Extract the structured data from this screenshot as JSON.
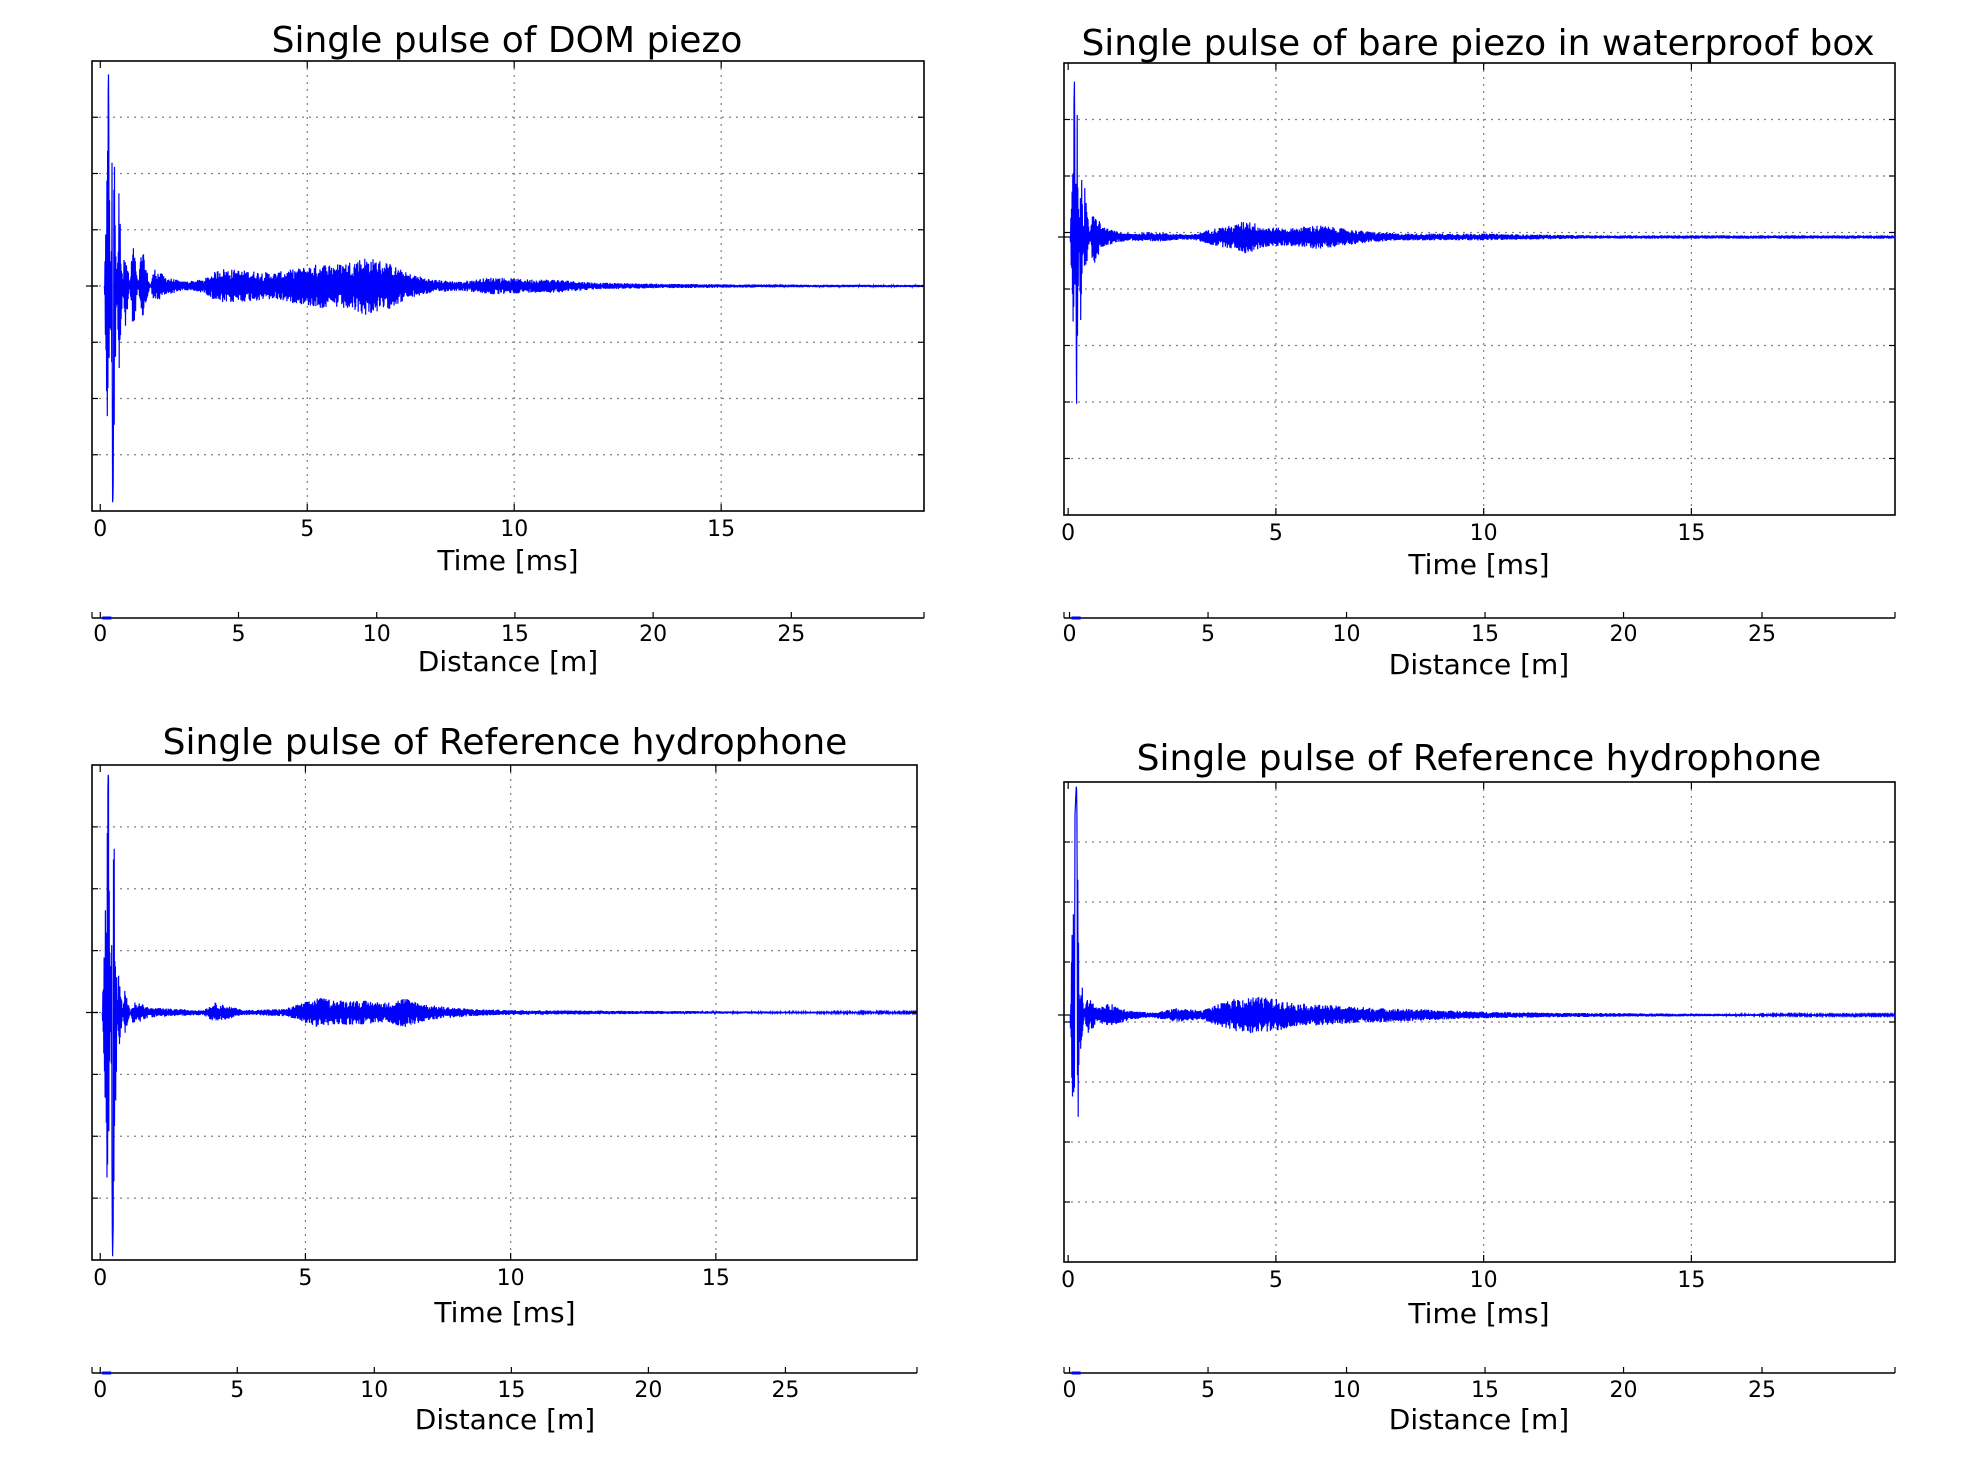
{
  "colors": {
    "signal": "#0000ff",
    "axes": "#000000",
    "grid": "#808080",
    "background": "#ffffff"
  },
  "chart_data": [
    {
      "type": "line",
      "title": "Single pulse of DOM piezo",
      "xlabel": "Time [ms]",
      "secondary_xlabel": "Distance [m]",
      "xlim": [
        -0.2,
        19.9
      ],
      "xticks": [
        "0",
        "5",
        "10",
        "15"
      ],
      "secondary_xlim": [
        -0.3,
        29.8
      ],
      "secondary_xticks": [
        "0",
        "5",
        "10",
        "15",
        "20",
        "25"
      ],
      "grid": true,
      "series": [
        {
          "x": [
            0.1,
            0.2,
            0.3,
            0.45,
            0.6,
            0.8,
            1.0,
            1.3,
            1.6,
            2.0,
            2.5,
            2.9,
            3.5,
            4.2,
            4.8,
            5.3,
            5.8,
            6.4,
            6.9,
            7.4,
            8.0,
            8.7,
            9.5,
            10.3,
            11.0,
            12.0,
            13.5,
            15.0,
            17.0,
            19.9
          ],
          "amplitude": [
            0.0,
            0.95,
            -1.0,
            0.45,
            -0.25,
            0.22,
            -0.18,
            0.08,
            0.04,
            0.02,
            0.03,
            0.08,
            0.07,
            0.06,
            0.08,
            0.1,
            0.1,
            0.13,
            0.11,
            0.06,
            0.03,
            0.02,
            0.04,
            0.03,
            0.03,
            0.015,
            0.01,
            0.008,
            0.006,
            0.005
          ]
        }
      ]
    },
    {
      "type": "line",
      "title": "Single pulse of bare piezo in waterproof box",
      "xlabel": "Time [ms]",
      "secondary_xlabel": "Distance [m]",
      "xlim": [
        -0.1,
        19.9
      ],
      "xticks": [
        "0",
        "5",
        "10",
        "15"
      ],
      "secondary_xlim": [
        -0.2,
        29.8
      ],
      "secondary_xticks": [
        "0",
        "5",
        "10",
        "15",
        "20",
        "25"
      ],
      "grid": true,
      "series": [
        {
          "x": [
            0.05,
            0.15,
            0.2,
            0.3,
            0.4,
            0.6,
            0.8,
            1.2,
            1.5,
            2.0,
            2.5,
            3.0,
            3.5,
            4.0,
            4.3,
            4.7,
            5.3,
            6.0,
            6.6,
            7.3,
            8.0,
            9.0,
            10.0,
            11.0,
            12.5,
            14.0,
            16.0,
            18.0,
            19.9
          ],
          "amplitude": [
            0.0,
            0.9,
            -1.0,
            0.55,
            -0.3,
            0.2,
            0.06,
            0.03,
            0.02,
            0.03,
            0.02,
            0.015,
            0.05,
            0.07,
            0.1,
            0.06,
            0.05,
            0.07,
            0.05,
            0.03,
            0.02,
            0.02,
            0.02,
            0.015,
            0.01,
            0.01,
            0.01,
            0.01,
            0.01
          ]
        }
      ]
    },
    {
      "type": "line",
      "title": "Single pulse of Reference hydrophone",
      "xlabel": "Time [ms]",
      "secondary_xlabel": "Distance [m]",
      "xlim": [
        -0.2,
        19.9
      ],
      "xticks": [
        "0",
        "5",
        "10",
        "15"
      ],
      "secondary_xlim": [
        -0.3,
        29.8
      ],
      "secondary_xticks": [
        "0",
        "5",
        "10",
        "15",
        "20",
        "25"
      ],
      "grid": true,
      "series": [
        {
          "x": [
            0.05,
            0.15,
            0.2,
            0.3,
            0.45,
            0.6,
            0.8,
            1.2,
            1.8,
            2.5,
            2.8,
            3.5,
            4.5,
            5.3,
            5.8,
            6.3,
            7.0,
            7.4,
            8.0,
            9.0,
            10.0,
            12.0,
            14.0,
            17.0,
            19.9
          ],
          "amplitude": [
            0.0,
            0.6,
            1.0,
            -1.0,
            0.2,
            -0.1,
            0.05,
            0.02,
            0.015,
            0.01,
            0.04,
            0.01,
            0.015,
            0.06,
            0.05,
            0.05,
            0.04,
            0.06,
            0.03,
            0.015,
            0.01,
            0.008,
            0.006,
            0.004,
            0.003
          ]
        }
      ]
    },
    {
      "type": "line",
      "title": "Single pulse of Reference hydrophone",
      "xlabel": "Time [ms]",
      "secondary_xlabel": "Distance [m]",
      "xlim": [
        -0.1,
        19.9
      ],
      "xticks": [
        "0",
        "5",
        "10",
        "15"
      ],
      "secondary_xlim": [
        -0.2,
        29.8
      ],
      "secondary_xticks": [
        "0",
        "5",
        "10",
        "15",
        "20",
        "25"
      ],
      "grid": true,
      "series": [
        {
          "x": [
            0.05,
            0.15,
            0.2,
            0.3,
            0.45,
            0.7,
            1.0,
            1.5,
            2.0,
            2.6,
            3.2,
            4.0,
            4.5,
            5.0,
            5.5,
            6.5,
            7.5,
            8.5,
            9.0,
            10.0,
            11.5,
            13.0,
            15.0,
            17.0,
            19.9
          ],
          "amplitude": [
            0.0,
            0.8,
            1.0,
            -0.2,
            0.1,
            0.03,
            0.05,
            0.02,
            0.01,
            0.03,
            0.02,
            0.07,
            0.08,
            0.07,
            0.05,
            0.04,
            0.03,
            0.025,
            0.02,
            0.015,
            0.01,
            0.008,
            0.006,
            0.004,
            0.003
          ]
        }
      ]
    }
  ]
}
